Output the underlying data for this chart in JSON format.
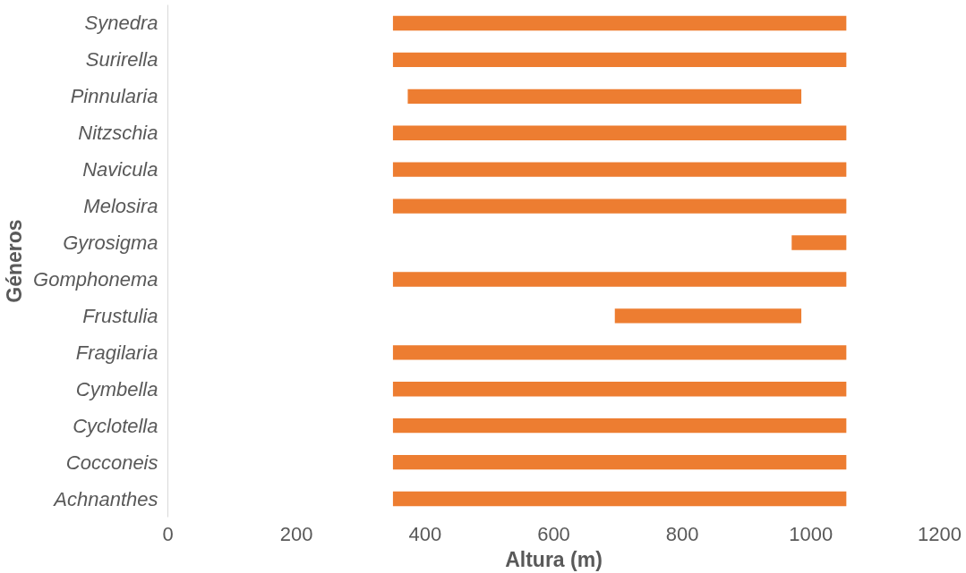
{
  "chart_data": {
    "type": "bar",
    "orientation": "horizontal",
    "xlabel": "Altura (m)",
    "ylabel": "Géneros",
    "categories": [
      "Synedra",
      "Surirella",
      "Pinnularia",
      "Nitzschia",
      "Navicula",
      "Melosira",
      "Gyrosigma",
      "Gomphonema",
      "Frustulia",
      "Fragilaria",
      "Cymbella",
      "Cyclotella",
      "Cocconeis",
      "Achnanthes"
    ],
    "base": [
      350,
      350,
      373,
      350,
      350,
      350,
      970,
      350,
      695,
      350,
      350,
      350,
      350,
      350
    ],
    "values": [
      705,
      705,
      612,
      705,
      705,
      705,
      85,
      705,
      290,
      705,
      705,
      705,
      705,
      705
    ],
    "color": "#ed7d31",
    "xlim": [
      0,
      1200
    ],
    "xticks": [
      0,
      200,
      400,
      600,
      800,
      1000,
      1200
    ],
    "grid": false
  }
}
